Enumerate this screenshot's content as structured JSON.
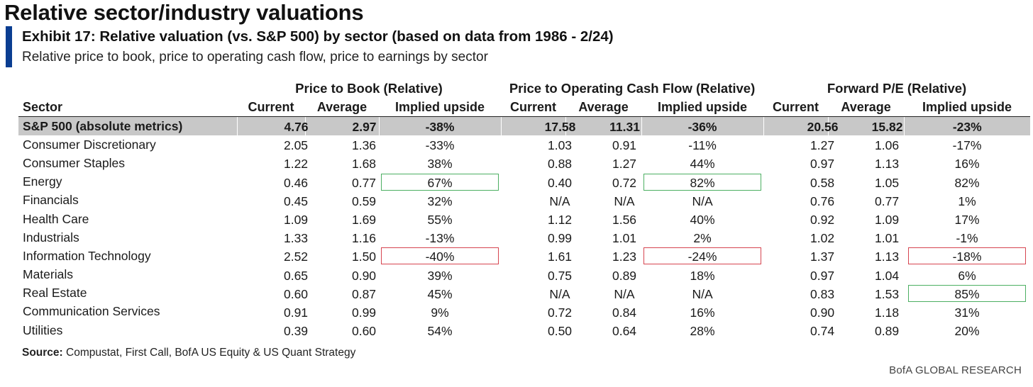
{
  "header": {
    "page_title": "Relative sector/industry valuations",
    "exhibit_title": "Exhibit 17: Relative valuation (vs. S&P 500) by sector (based on data from 1986 - 2/24)",
    "exhibit_subtitle": "Relative price to book, price to operating cash flow, price to earnings by sector"
  },
  "colors": {
    "accent": "#0a3d91",
    "highlight_row": "#c8c8c8",
    "box_green": "#4caf62",
    "box_red": "#d64550"
  },
  "chart_data": {
    "type": "table",
    "title": "Relative valuation (vs. S&P 500) by sector (based on data from 1986 - 2/24)",
    "groups": [
      "Price to Book (Relative)",
      "Price to Operating Cash Flow (Relative)",
      "Forward P/E (Relative)"
    ],
    "columns": [
      "Sector",
      "Current",
      "Average",
      "Implied upside",
      "Current",
      "Average",
      "Implied upside",
      "Current",
      "Average",
      "Implied upside"
    ],
    "rows": [
      {
        "sector": "S&P 500 (absolute metrics)",
        "values": [
          "4.76",
          "2.97",
          "-38%",
          "17.58",
          "11.31",
          "-36%",
          "20.56",
          "15.82",
          "-23%"
        ],
        "highlight": true,
        "boxes": [
          "",
          "",
          "",
          "",
          "",
          "",
          "",
          "",
          ""
        ]
      },
      {
        "sector": "Consumer Discretionary",
        "values": [
          "2.05",
          "1.36",
          "-33%",
          "1.03",
          "0.91",
          "-11%",
          "1.27",
          "1.06",
          "-17%"
        ],
        "highlight": false,
        "boxes": [
          "",
          "",
          "",
          "",
          "",
          "",
          "",
          "",
          ""
        ]
      },
      {
        "sector": "Consumer Staples",
        "values": [
          "1.22",
          "1.68",
          "38%",
          "0.88",
          "1.27",
          "44%",
          "0.97",
          "1.13",
          "16%"
        ],
        "highlight": false,
        "boxes": [
          "",
          "",
          "",
          "",
          "",
          "",
          "",
          "",
          ""
        ]
      },
      {
        "sector": "Energy",
        "values": [
          "0.46",
          "0.77",
          "67%",
          "0.40",
          "0.72",
          "82%",
          "0.58",
          "1.05",
          "82%"
        ],
        "highlight": false,
        "boxes": [
          "",
          "",
          "green",
          "",
          "",
          "green",
          "",
          "",
          ""
        ]
      },
      {
        "sector": "Financials",
        "values": [
          "0.45",
          "0.59",
          "32%",
          "N/A",
          "N/A",
          "N/A",
          "0.76",
          "0.77",
          "1%"
        ],
        "highlight": false,
        "boxes": [
          "",
          "",
          "",
          "",
          "",
          "",
          "",
          "",
          ""
        ]
      },
      {
        "sector": "Health Care",
        "values": [
          "1.09",
          "1.69",
          "55%",
          "1.12",
          "1.56",
          "40%",
          "0.92",
          "1.09",
          "17%"
        ],
        "highlight": false,
        "boxes": [
          "",
          "",
          "",
          "",
          "",
          "",
          "",
          "",
          ""
        ]
      },
      {
        "sector": "Industrials",
        "values": [
          "1.33",
          "1.16",
          "-13%",
          "0.99",
          "1.01",
          "2%",
          "1.02",
          "1.01",
          "-1%"
        ],
        "highlight": false,
        "boxes": [
          "",
          "",
          "",
          "",
          "",
          "",
          "",
          "",
          ""
        ]
      },
      {
        "sector": "Information Technology",
        "values": [
          "2.52",
          "1.50",
          "-40%",
          "1.61",
          "1.23",
          "-24%",
          "1.37",
          "1.13",
          "-18%"
        ],
        "highlight": false,
        "boxes": [
          "",
          "",
          "red",
          "",
          "",
          "red",
          "",
          "",
          "red"
        ]
      },
      {
        "sector": "Materials",
        "values": [
          "0.65",
          "0.90",
          "39%",
          "0.75",
          "0.89",
          "18%",
          "0.97",
          "1.04",
          "6%"
        ],
        "highlight": false,
        "boxes": [
          "",
          "",
          "",
          "",
          "",
          "",
          "",
          "",
          ""
        ]
      },
      {
        "sector": "Real Estate",
        "values": [
          "0.60",
          "0.87",
          "45%",
          "N/A",
          "N/A",
          "N/A",
          "0.83",
          "1.53",
          "85%"
        ],
        "highlight": false,
        "boxes": [
          "",
          "",
          "",
          "",
          "",
          "",
          "",
          "",
          "green"
        ]
      },
      {
        "sector": "Communication Services",
        "values": [
          "0.91",
          "0.99",
          "9%",
          "0.72",
          "0.84",
          "16%",
          "0.90",
          "1.18",
          "31%"
        ],
        "highlight": false,
        "boxes": [
          "",
          "",
          "",
          "",
          "",
          "",
          "",
          "",
          ""
        ]
      },
      {
        "sector": "Utilities",
        "values": [
          "0.39",
          "0.60",
          "54%",
          "0.50",
          "0.64",
          "28%",
          "0.74",
          "0.89",
          "20%"
        ],
        "highlight": false,
        "boxes": [
          "",
          "",
          "",
          "",
          "",
          "",
          "",
          "",
          ""
        ]
      }
    ]
  },
  "footer": {
    "source_label": "Source:",
    "source_text": " Compustat, First Call, BofA US Equity & US Quant Strategy",
    "brand": "BofA GLOBAL RESEARCH"
  }
}
